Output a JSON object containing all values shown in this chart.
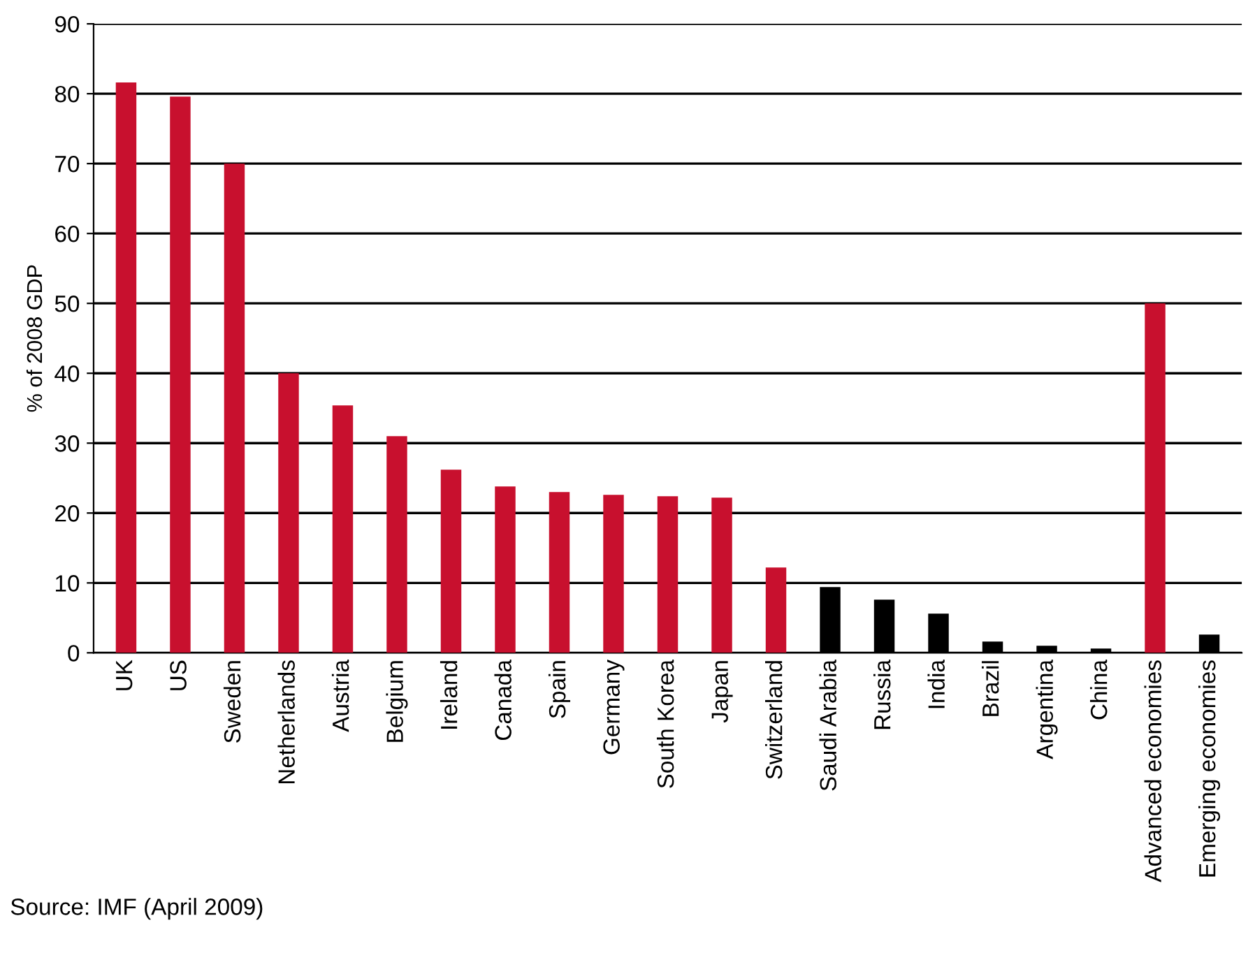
{
  "chart_data": {
    "type": "bar",
    "ylabel": "% of 2008 GDP",
    "categories": [
      "UK",
      "US",
      "Sweden",
      "Netherlands",
      "Austria",
      "Belgium",
      "Ireland",
      "Canada",
      "Spain",
      "Germany",
      "South Korea",
      "Japan",
      "Switzerland",
      "Saudi Arabia",
      "Russia",
      "India",
      "Brazil",
      "Argentina",
      "China",
      "Advanced economies",
      "Emerging economies"
    ],
    "values": [
      81.6,
      79.6,
      70,
      40,
      35.4,
      31,
      26.2,
      23.8,
      23,
      22.6,
      22.4,
      22.2,
      12.2,
      9.4,
      7.6,
      5.6,
      1.6,
      1,
      0.6,
      50,
      2.6
    ],
    "colors": [
      "#c8102e",
      "#c8102e",
      "#c8102e",
      "#c8102e",
      "#c8102e",
      "#c8102e",
      "#c8102e",
      "#c8102e",
      "#c8102e",
      "#c8102e",
      "#c8102e",
      "#c8102e",
      "#c8102e",
      "#000000",
      "#000000",
      "#000000",
      "#000000",
      "#000000",
      "#000000",
      "#c8102e",
      "#000000"
    ],
    "ylim": [
      0,
      90
    ],
    "yticks": [
      0,
      10,
      20,
      30,
      40,
      50,
      60,
      70,
      80,
      90
    ],
    "grid": "y",
    "annotations": [
      "Source: IMF (April 2009)"
    ]
  }
}
